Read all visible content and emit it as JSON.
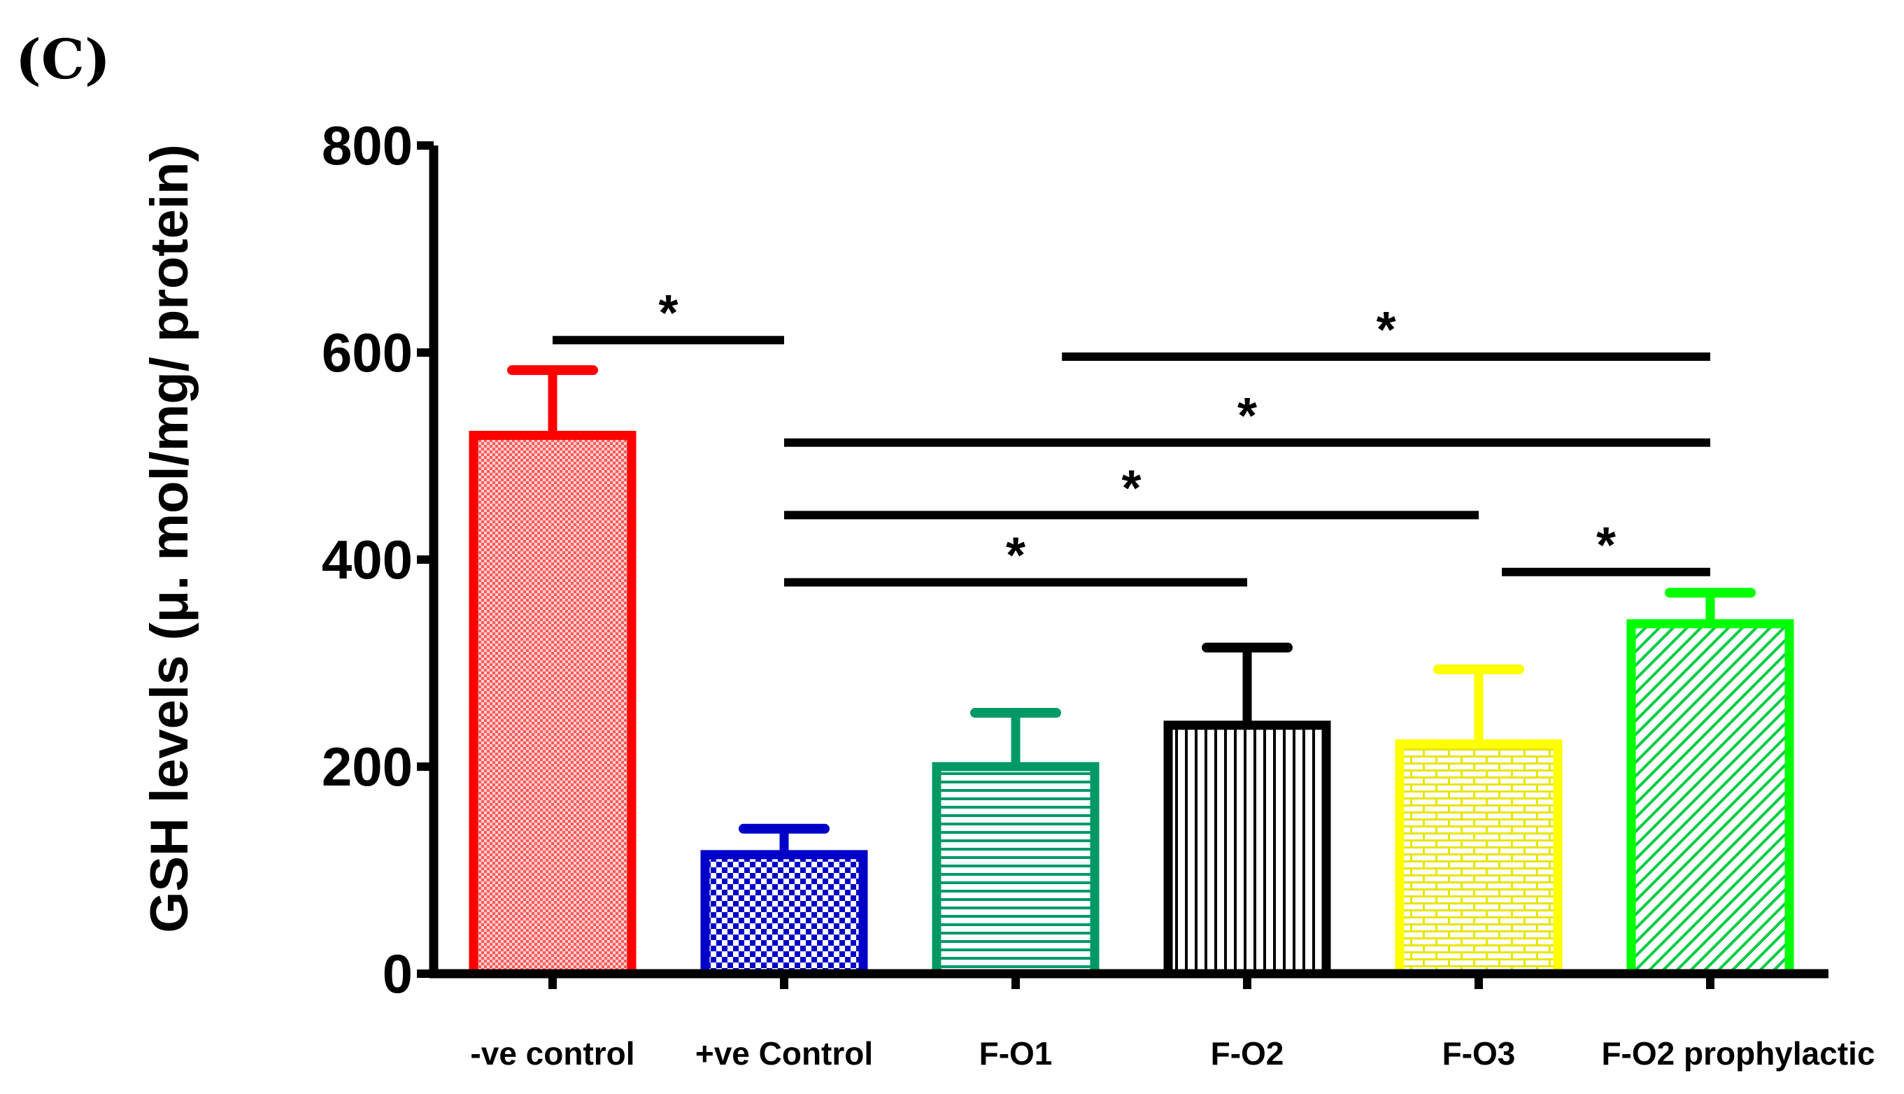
{
  "panel_label": "(C)",
  "chart_data": {
    "type": "bar",
    "title": "",
    "xlabel": "",
    "ylabel": "GSH levels (μ. mol/mg/ protein)",
    "ylim": [
      0,
      800
    ],
    "yticks": [
      0,
      200,
      400,
      600,
      800
    ],
    "categories": [
      "-ve control",
      "+ve Control",
      "F-O1",
      "F-O2",
      "F-O3",
      "F-O2 prophylactic"
    ],
    "values": [
      520,
      115,
      200,
      240,
      222,
      338
    ],
    "errors": [
      63,
      25,
      52,
      75,
      72,
      30
    ],
    "colors": [
      "#ff0000",
      "#0000c8",
      "#009966",
      "#000000",
      "#ffff00",
      "#00ff00"
    ],
    "patterns": [
      "fine-dots",
      "checker",
      "horizontal-lines",
      "vertical-lines",
      "brick",
      "diagonal-lines"
    ],
    "significance": [
      {
        "from": 0,
        "to": 1,
        "y": 612,
        "label": "*"
      },
      {
        "from": 2.2,
        "to": 5,
        "y": 596,
        "label": "*"
      },
      {
        "from": 1,
        "to": 5,
        "y": 513,
        "label": "*"
      },
      {
        "from": 1,
        "to": 4,
        "y": 443,
        "label": "*"
      },
      {
        "from": 1,
        "to": 3,
        "y": 378,
        "label": "*"
      },
      {
        "from": 4.1,
        "to": 5,
        "y": 388,
        "label": "*"
      }
    ]
  }
}
